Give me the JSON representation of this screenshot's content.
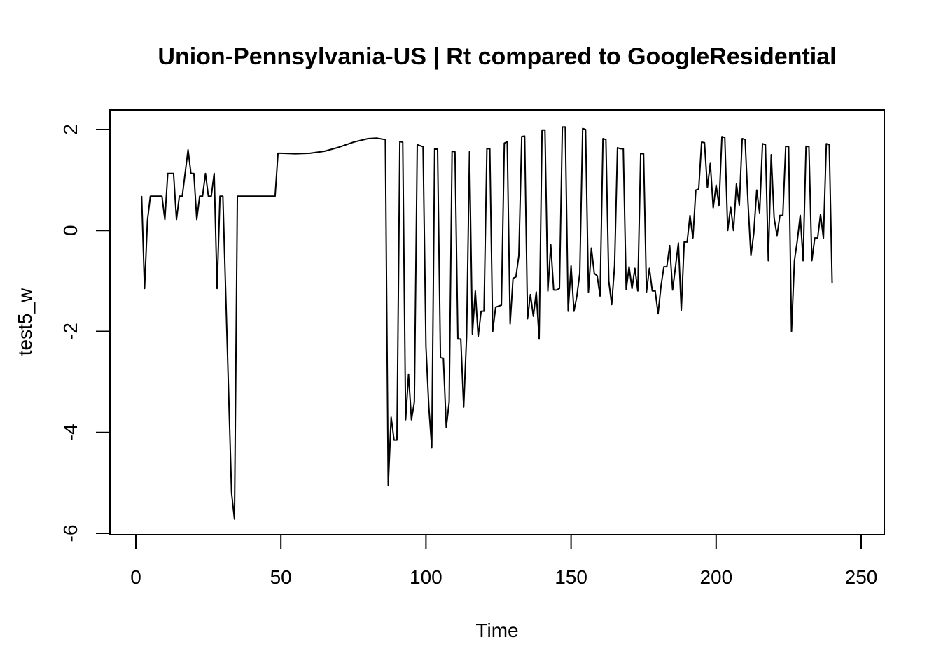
{
  "chart_data": {
    "type": "line",
    "title": "Union-Pennsylvania-US | Rt compared to GoogleResidential",
    "xlabel": "Time",
    "ylabel": "test5_w",
    "xlim": [
      0,
      250
    ],
    "ylim": [
      -6,
      2
    ],
    "x_ticks": [
      0,
      50,
      100,
      150,
      200,
      250
    ],
    "y_ticks": [
      -6,
      -4,
      -2,
      0,
      2
    ],
    "x_tick_labels": [
      "0",
      "50",
      "100",
      "150",
      "200",
      "250"
    ],
    "y_tick_labels": [
      "-6",
      "-4",
      "-2",
      "0",
      "2"
    ],
    "grid": false,
    "series": [
      {
        "color": "#000000",
        "points": [
          [
            2,
            0.68
          ],
          [
            3,
            -1.15
          ],
          [
            4,
            0.2
          ],
          [
            5,
            0.68
          ],
          [
            9,
            0.68
          ],
          [
            10,
            0.22
          ],
          [
            11,
            1.13
          ],
          [
            13,
            1.13
          ],
          [
            14,
            0.22
          ],
          [
            15,
            0.68
          ],
          [
            16,
            0.68
          ],
          [
            18,
            1.6
          ],
          [
            19,
            1.13
          ],
          [
            20,
            1.13
          ],
          [
            21,
            0.22
          ],
          [
            22,
            0.68
          ],
          [
            23,
            0.68
          ],
          [
            24,
            1.13
          ],
          [
            25,
            0.68
          ],
          [
            26,
            0.68
          ],
          [
            27,
            1.13
          ],
          [
            28,
            -1.15
          ],
          [
            29,
            0.68
          ],
          [
            30,
            0.68
          ],
          [
            33,
            -5.2
          ],
          [
            34,
            -5.72
          ],
          [
            35,
            0.68
          ],
          [
            48,
            0.68
          ],
          [
            49,
            1.53
          ],
          [
            50,
            1.53
          ],
          [
            55,
            1.52
          ],
          [
            60,
            1.53
          ],
          [
            65,
            1.57
          ],
          [
            70,
            1.65
          ],
          [
            75,
            1.75
          ],
          [
            80,
            1.82
          ],
          [
            83,
            1.83
          ],
          [
            86,
            1.8
          ],
          [
            87,
            -5.05
          ],
          [
            88,
            -3.7
          ],
          [
            89,
            -4.15
          ],
          [
            90,
            -4.15
          ],
          [
            91,
            1.76
          ],
          [
            92,
            1.75
          ],
          [
            93,
            -3.75
          ],
          [
            94,
            -2.85
          ],
          [
            95,
            -3.75
          ],
          [
            96,
            -3.4
          ],
          [
            97,
            1.7
          ],
          [
            98,
            1.68
          ],
          [
            99,
            1.66
          ],
          [
            100,
            -2.3
          ],
          [
            101,
            -3.5
          ],
          [
            102,
            -4.3
          ],
          [
            103,
            1.62
          ],
          [
            104,
            1.61
          ],
          [
            105,
            -2.52
          ],
          [
            106,
            -2.53
          ],
          [
            107,
            -3.9
          ],
          [
            108,
            -3.4
          ],
          [
            109,
            1.57
          ],
          [
            110,
            1.56
          ],
          [
            111,
            -2.15
          ],
          [
            112,
            -2.15
          ],
          [
            113,
            -3.5
          ],
          [
            114,
            -2.1
          ],
          [
            115,
            1.56
          ],
          [
            116,
            -2.05
          ],
          [
            117,
            -1.2
          ],
          [
            118,
            -2.1
          ],
          [
            119,
            -1.6
          ],
          [
            120,
            -1.6
          ],
          [
            121,
            1.62
          ],
          [
            122,
            1.62
          ],
          [
            123,
            -2.0
          ],
          [
            124,
            -1.52
          ],
          [
            125,
            -1.5
          ],
          [
            126,
            -1.48
          ],
          [
            127,
            1.73
          ],
          [
            128,
            1.76
          ],
          [
            129,
            -1.85
          ],
          [
            130,
            -0.95
          ],
          [
            131,
            -0.92
          ],
          [
            132,
            -0.5
          ],
          [
            133,
            1.86
          ],
          [
            134,
            1.87
          ],
          [
            135,
            -1.75
          ],
          [
            136,
            -1.27
          ],
          [
            137,
            -1.7
          ],
          [
            138,
            -1.22
          ],
          [
            139,
            -2.15
          ],
          [
            140,
            1.99
          ],
          [
            141,
            1.99
          ],
          [
            142,
            -1.2
          ],
          [
            143,
            -0.28
          ],
          [
            144,
            -1.18
          ],
          [
            145,
            -1.18
          ],
          [
            146,
            -1.15
          ],
          [
            147,
            2.05
          ],
          [
            148,
            2.05
          ],
          [
            149,
            -1.6
          ],
          [
            150,
            -0.7
          ],
          [
            151,
            -1.6
          ],
          [
            152,
            -1.3
          ],
          [
            153,
            -0.85
          ],
          [
            154,
            2.02
          ],
          [
            155,
            2.0
          ],
          [
            156,
            -1.22
          ],
          [
            157,
            -0.35
          ],
          [
            158,
            -0.85
          ],
          [
            159,
            -0.9
          ],
          [
            160,
            -1.3
          ],
          [
            161,
            1.82
          ],
          [
            162,
            1.8
          ],
          [
            163,
            -1.0
          ],
          [
            164,
            -1.47
          ],
          [
            165,
            -0.7
          ],
          [
            166,
            1.64
          ],
          [
            167,
            1.62
          ],
          [
            168,
            1.62
          ],
          [
            169,
            -1.17
          ],
          [
            170,
            -0.72
          ],
          [
            171,
            -1.15
          ],
          [
            172,
            -0.75
          ],
          [
            173,
            -1.2
          ],
          [
            174,
            1.53
          ],
          [
            175,
            1.52
          ],
          [
            176,
            -1.22
          ],
          [
            177,
            -0.75
          ],
          [
            178,
            -1.2
          ],
          [
            179,
            -1.2
          ],
          [
            180,
            -1.65
          ],
          [
            181,
            -1.1
          ],
          [
            182,
            -0.72
          ],
          [
            183,
            -0.72
          ],
          [
            184,
            -0.3
          ],
          [
            185,
            -1.18
          ],
          [
            186,
            -0.72
          ],
          [
            187,
            -0.25
          ],
          [
            188,
            -1.58
          ],
          [
            189,
            -0.23
          ],
          [
            190,
            -0.23
          ],
          [
            191,
            0.3
          ],
          [
            192,
            -0.15
          ],
          [
            193,
            0.8
          ],
          [
            194,
            0.82
          ],
          [
            195,
            1.75
          ],
          [
            196,
            1.74
          ],
          [
            197,
            0.85
          ],
          [
            198,
            1.33
          ],
          [
            199,
            0.45
          ],
          [
            200,
            0.9
          ],
          [
            201,
            0.5
          ],
          [
            202,
            1.86
          ],
          [
            203,
            1.84
          ],
          [
            204,
            0.0
          ],
          [
            205,
            0.47
          ],
          [
            206,
            0.0
          ],
          [
            207,
            0.92
          ],
          [
            208,
            0.5
          ],
          [
            209,
            1.82
          ],
          [
            210,
            1.8
          ],
          [
            211,
            0.55
          ],
          [
            212,
            -0.5
          ],
          [
            213,
            -0.05
          ],
          [
            214,
            0.8
          ],
          [
            215,
            0.35
          ],
          [
            216,
            1.72
          ],
          [
            217,
            1.7
          ],
          [
            218,
            -0.6
          ],
          [
            219,
            1.5
          ],
          [
            220,
            0.25
          ],
          [
            221,
            -0.1
          ],
          [
            222,
            0.3
          ],
          [
            223,
            0.3
          ],
          [
            224,
            1.67
          ],
          [
            225,
            1.66
          ],
          [
            226,
            -2.0
          ],
          [
            227,
            -0.6
          ],
          [
            228,
            -0.2
          ],
          [
            229,
            0.3
          ],
          [
            230,
            -0.6
          ],
          [
            231,
            1.67
          ],
          [
            232,
            1.66
          ],
          [
            233,
            -0.6
          ],
          [
            234,
            -0.15
          ],
          [
            235,
            -0.15
          ],
          [
            236,
            0.32
          ],
          [
            237,
            -0.15
          ],
          [
            238,
            1.72
          ],
          [
            239,
            1.7
          ],
          [
            240,
            -1.05
          ]
        ]
      }
    ]
  }
}
